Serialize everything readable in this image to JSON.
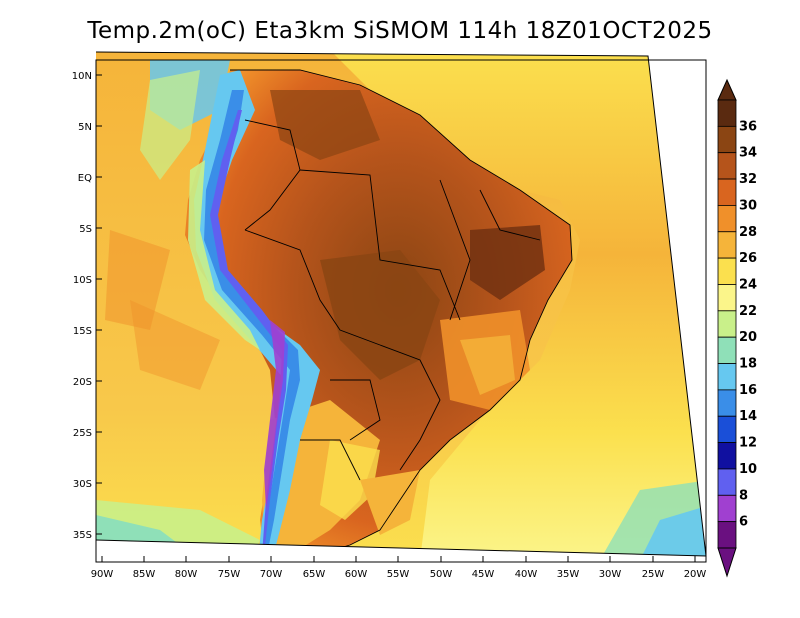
{
  "title": "Temp.2m(oC) Eta3km SiSMOM 114h 18Z01OCT2025",
  "latitude_labels": [
    "10N",
    "5N",
    "EQ",
    "5S",
    "10S",
    "15S",
    "20S",
    "25S",
    "30S",
    "35S"
  ],
  "longitude_labels": [
    "90W",
    "85W",
    "80W",
    "75W",
    "70W",
    "65W",
    "60W",
    "55W",
    "50W",
    "45W",
    "40W",
    "35W",
    "30W",
    "25W",
    "20W"
  ],
  "colorbar": {
    "labels": [
      "36",
      "34",
      "32",
      "30",
      "28",
      "26",
      "24",
      "22",
      "20",
      "18",
      "16",
      "14",
      "12",
      "10",
      "8",
      "6"
    ],
    "colors": [
      "#5a2a10",
      "#8b4513",
      "#b5541b",
      "#d9651f",
      "#f0902a",
      "#f5b43a",
      "#fbe04e",
      "#fbf58a",
      "#c9f08a",
      "#8fe0b8",
      "#66c8f0",
      "#3a8ee8",
      "#1a4fd8",
      "#1010a0",
      "#6060f0",
      "#a040d0",
      "#6a1080"
    ]
  }
}
